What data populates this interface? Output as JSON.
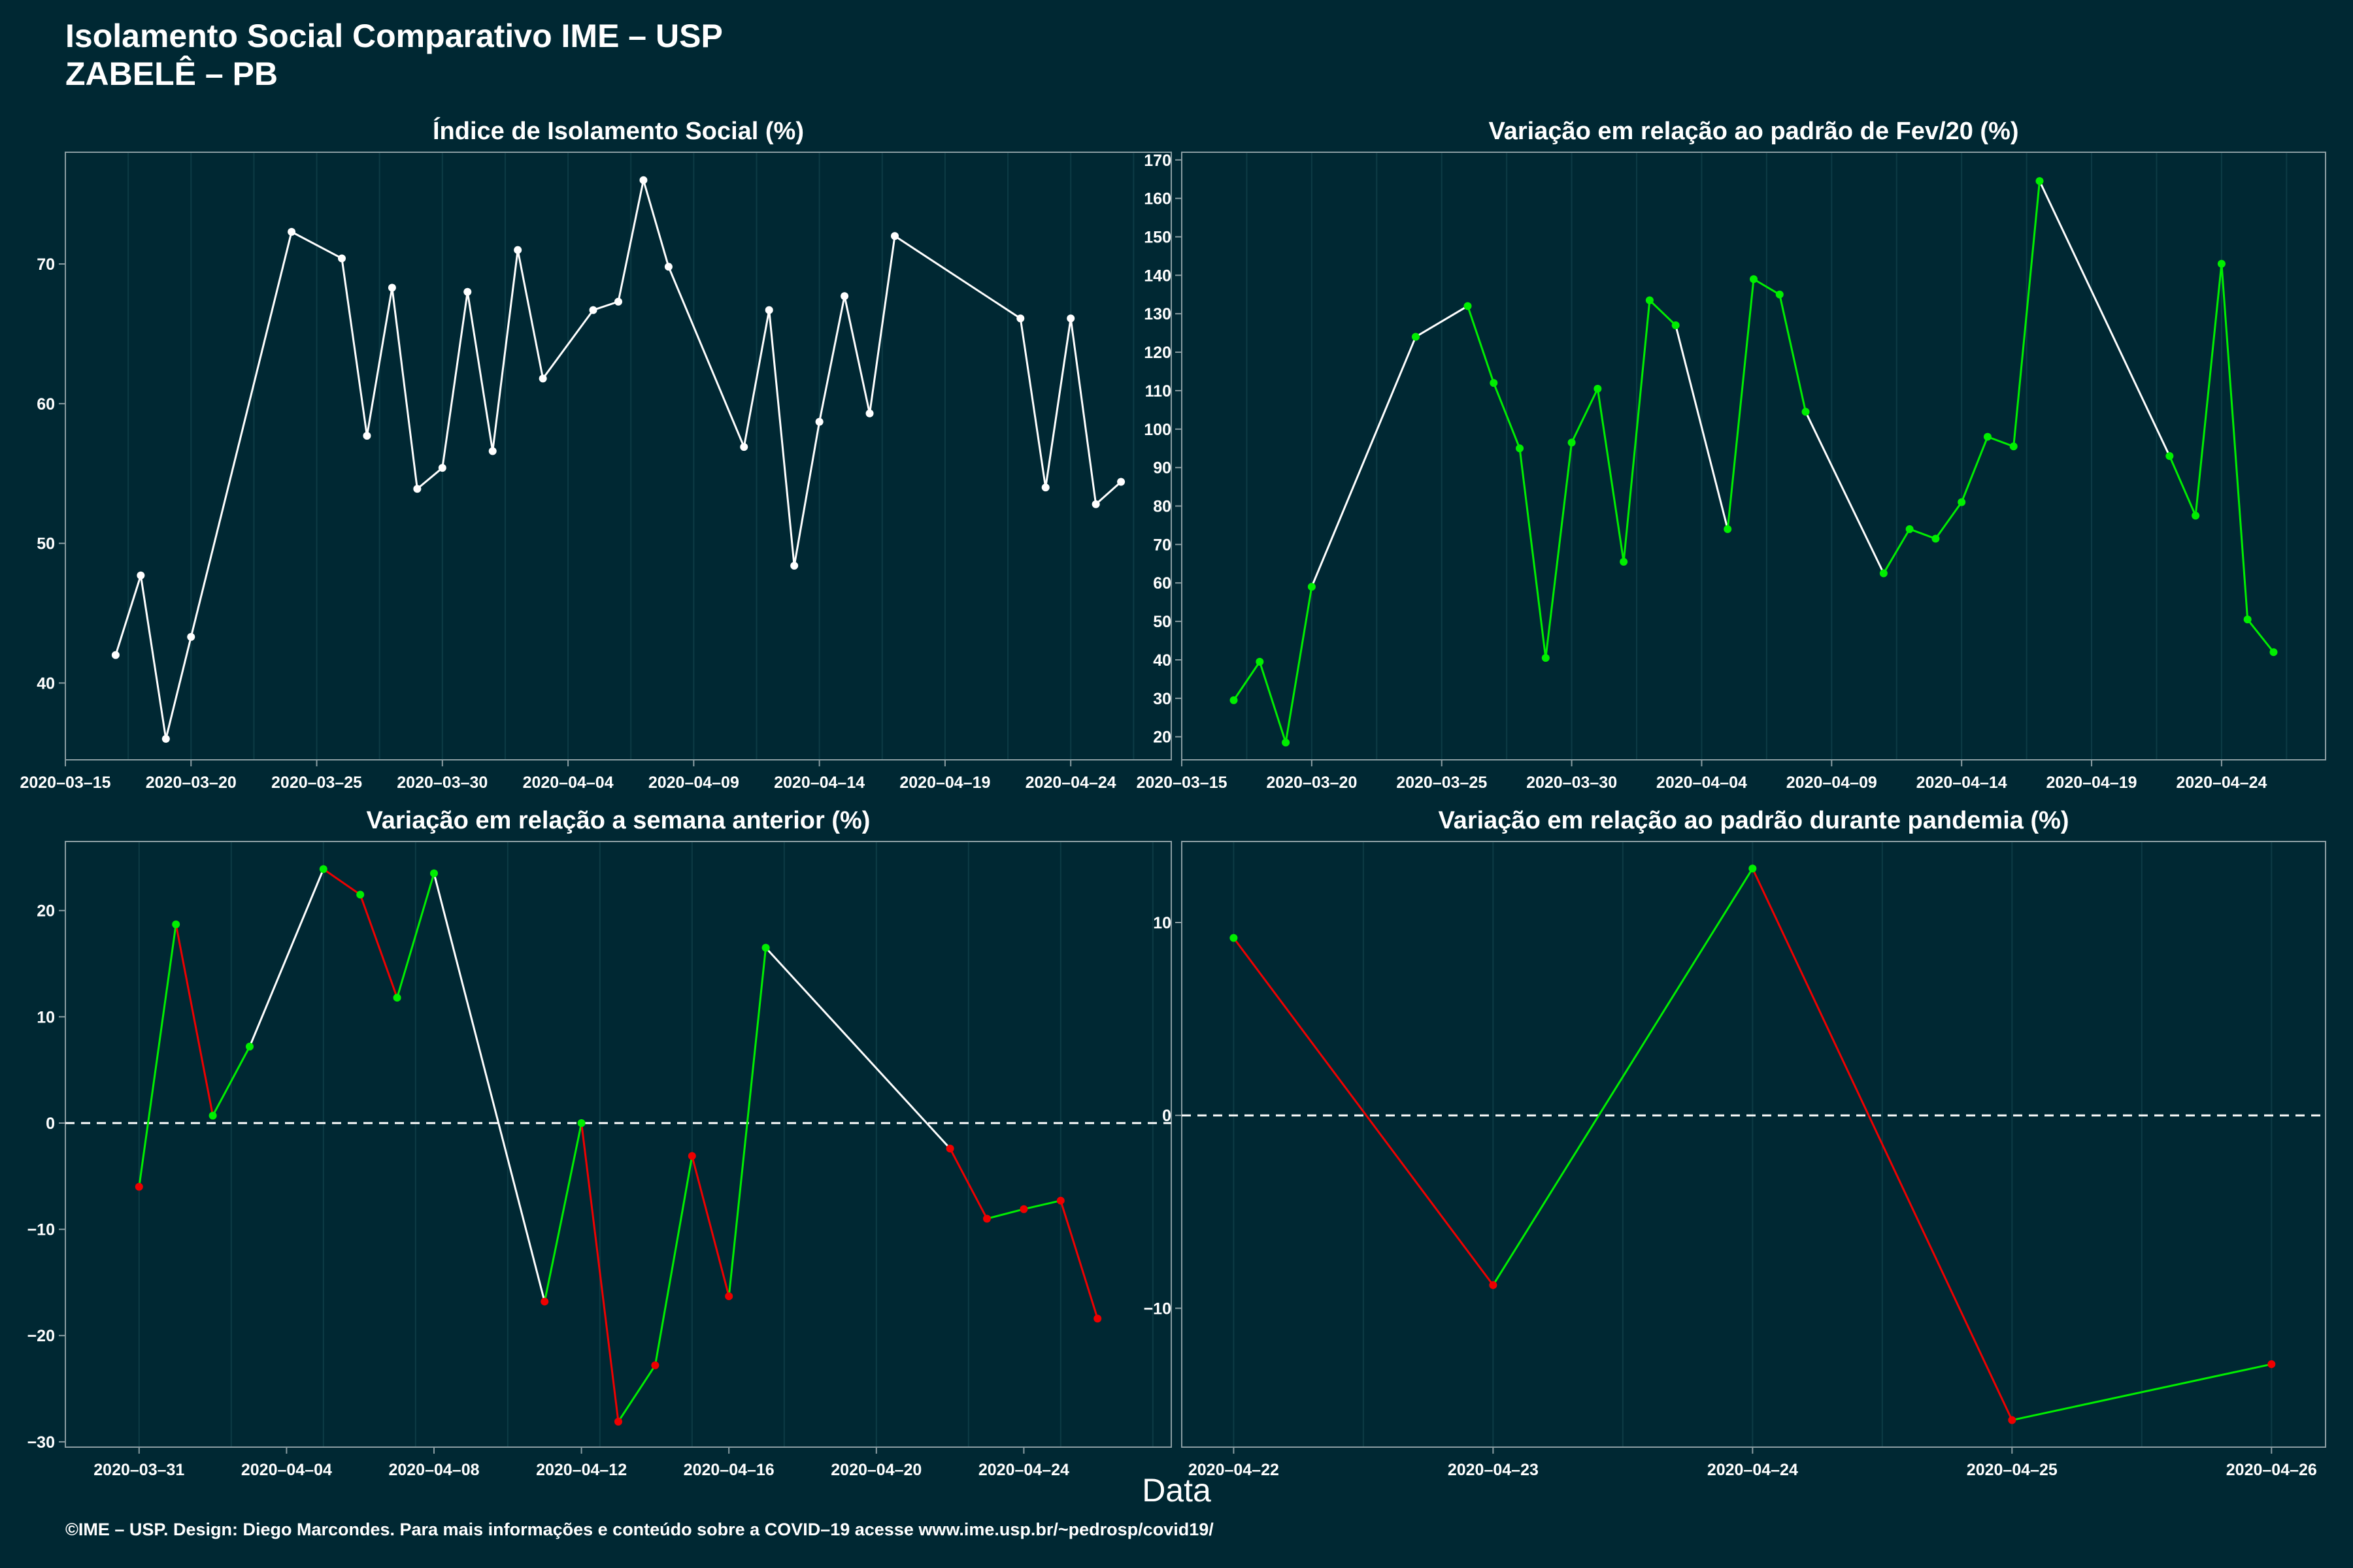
{
  "header": {
    "title_line1": "Isolamento Social Comparativo IME – USP",
    "title_line2": "ZABELÊ – PB"
  },
  "xlabel": "Data",
  "footer": "©IME – USP. Design: Diego Marcondes. Para mais informações e conteúdo sobre a COVID–19 acesse www.ime.usp.br/~pedrosp/covid19/",
  "colors": {
    "background": "#002833",
    "line_neutral": "#ffffff",
    "increase": "#00ee00",
    "decrease": "#ee0000",
    "grid": "#0d3b45",
    "axis": "#8c9ea3"
  },
  "chart_data": [
    {
      "type": "line",
      "title": "Índice de Isolamento Social (%)",
      "x_type": "date",
      "xlim": [
        "2020-03-15",
        "2020-04-28"
      ],
      "x_ticks": [
        "2020-03-15",
        "2020-03-20",
        "2020-03-25",
        "2020-03-30",
        "2020-04-04",
        "2020-04-09",
        "2020-04-14",
        "2020-04-19",
        "2020-04-24"
      ],
      "ylim": [
        34.5,
        78
      ],
      "y_ticks": [
        40,
        50,
        60,
        70
      ],
      "grid": true,
      "coloring": "white",
      "points": [
        [
          "2020-03-17",
          42.0
        ],
        [
          "2020-03-18",
          47.7
        ],
        [
          "2020-03-19",
          36.0
        ],
        [
          "2020-03-20",
          43.3
        ],
        [
          "2020-03-24",
          72.3
        ],
        [
          "2020-03-26",
          70.4
        ],
        [
          "2020-03-27",
          57.7
        ],
        [
          "2020-03-28",
          68.3
        ],
        [
          "2020-03-29",
          53.9
        ],
        [
          "2020-03-30",
          55.4
        ],
        [
          "2020-03-31",
          68.0
        ],
        [
          "2020-04-01",
          56.6
        ],
        [
          "2020-04-02",
          71.0
        ],
        [
          "2020-04-03",
          61.8
        ],
        [
          "2020-04-05",
          66.7
        ],
        [
          "2020-04-06",
          67.3
        ],
        [
          "2020-04-07",
          76.0
        ],
        [
          "2020-04-08",
          69.8
        ],
        [
          "2020-04-11",
          56.9
        ],
        [
          "2020-04-12",
          66.7
        ],
        [
          "2020-04-13",
          48.4
        ],
        [
          "2020-04-14",
          58.7
        ],
        [
          "2020-04-15",
          67.7
        ],
        [
          "2020-04-16",
          59.3
        ],
        [
          "2020-04-17",
          72.0
        ],
        [
          "2020-04-22",
          66.1
        ],
        [
          "2020-04-23",
          54.0
        ],
        [
          "2020-04-24",
          66.1
        ],
        [
          "2020-04-25",
          52.8
        ],
        [
          "2020-04-26",
          54.4
        ]
      ]
    },
    {
      "type": "line",
      "title": "Variação em relação ao padrão de Fev/20 (%)",
      "x_type": "date",
      "xlim": [
        "2020-03-15",
        "2020-04-28"
      ],
      "x_ticks": [
        "2020-03-15",
        "2020-03-20",
        "2020-03-25",
        "2020-03-30",
        "2020-04-04",
        "2020-04-09",
        "2020-04-14",
        "2020-04-19",
        "2020-04-24"
      ],
      "ylim": [
        14,
        172
      ],
      "y_ticks": [
        20,
        30,
        40,
        50,
        60,
        70,
        80,
        90,
        100,
        110,
        120,
        130,
        140,
        150,
        160,
        170
      ],
      "grid": true,
      "coloring": "consecutive-days-green",
      "points": [
        [
          "2020-03-17",
          29.5
        ],
        [
          "2020-03-18",
          39.5
        ],
        [
          "2020-03-19",
          18.5
        ],
        [
          "2020-03-20",
          59.0
        ],
        [
          "2020-03-24",
          124.0
        ],
        [
          "2020-03-26",
          132.0
        ],
        [
          "2020-03-27",
          112.0
        ],
        [
          "2020-03-28",
          95.0
        ],
        [
          "2020-03-29",
          40.5
        ],
        [
          "2020-03-30",
          96.5
        ],
        [
          "2020-03-31",
          110.5
        ],
        [
          "2020-04-01",
          65.5
        ],
        [
          "2020-04-02",
          133.5
        ],
        [
          "2020-04-03",
          127.0
        ],
        [
          "2020-04-05",
          74.0
        ],
        [
          "2020-04-06",
          139.0
        ],
        [
          "2020-04-07",
          135.0
        ],
        [
          "2020-04-08",
          104.5
        ],
        [
          "2020-04-11",
          62.5
        ],
        [
          "2020-04-12",
          74.0
        ],
        [
          "2020-04-13",
          71.5
        ],
        [
          "2020-04-14",
          81.0
        ],
        [
          "2020-04-15",
          98.0
        ],
        [
          "2020-04-16",
          95.5
        ],
        [
          "2020-04-17",
          164.5
        ],
        [
          "2020-04-22",
          93.0
        ],
        [
          "2020-04-23",
          77.5
        ],
        [
          "2020-04-24",
          143.0
        ],
        [
          "2020-04-25",
          50.5
        ],
        [
          "2020-04-26",
          42.0
        ]
      ]
    },
    {
      "type": "line",
      "title": "Variação em relação a semana anterior (%)",
      "x_type": "date",
      "xlim": [
        "2020-03-29",
        "2020-04-28"
      ],
      "x_ticks": [
        "2020-03-31",
        "2020-04-04",
        "2020-04-08",
        "2020-04-12",
        "2020-04-16",
        "2020-04-20",
        "2020-04-24"
      ],
      "ylim": [
        -30.5,
        26.5
      ],
      "y_ticks": [
        -30,
        -20,
        -10,
        0,
        10,
        20
      ],
      "zero_line": true,
      "grid": true,
      "coloring": "sign",
      "points": [
        [
          "2020-03-31",
          -6.0
        ],
        [
          "2020-04-01",
          18.7
        ],
        [
          "2020-04-02",
          0.7
        ],
        [
          "2020-04-03",
          7.2
        ],
        [
          "2020-04-05",
          23.9
        ],
        [
          "2020-04-06",
          21.5
        ],
        [
          "2020-04-07",
          11.8
        ],
        [
          "2020-04-08",
          23.5
        ],
        [
          "2020-04-11",
          -16.8
        ],
        [
          "2020-04-12",
          0.0
        ],
        [
          "2020-04-13",
          -28.1
        ],
        [
          "2020-04-14",
          -22.8
        ],
        [
          "2020-04-15",
          -3.1
        ],
        [
          "2020-04-16",
          -16.3
        ],
        [
          "2020-04-17",
          16.5
        ],
        [
          "2020-04-22",
          -2.4
        ],
        [
          "2020-04-23",
          -9.0
        ],
        [
          "2020-04-24",
          -8.1
        ],
        [
          "2020-04-25",
          -7.3
        ],
        [
          "2020-04-26",
          -18.4
        ]
      ]
    },
    {
      "type": "line",
      "title": "Variação em relação ao padrão durante pandemia (%)",
      "x_type": "date",
      "xlim": [
        "2020-04-21 19:12",
        "2020-04-26 05:00"
      ],
      "x_ticks": [
        "2020-04-22",
        "2020-04-23",
        "2020-04-24",
        "2020-04-25",
        "2020-04-26"
      ],
      "ylim": [
        -17.2,
        14.2
      ],
      "y_ticks": [
        -10,
        0,
        10
      ],
      "zero_line": true,
      "grid": true,
      "coloring": "sign",
      "points": [
        [
          "2020-04-22",
          9.2
        ],
        [
          "2020-04-23",
          -8.8
        ],
        [
          "2020-04-24",
          12.8
        ],
        [
          "2020-04-25",
          -15.8
        ],
        [
          "2020-04-26",
          -12.9
        ]
      ]
    }
  ]
}
